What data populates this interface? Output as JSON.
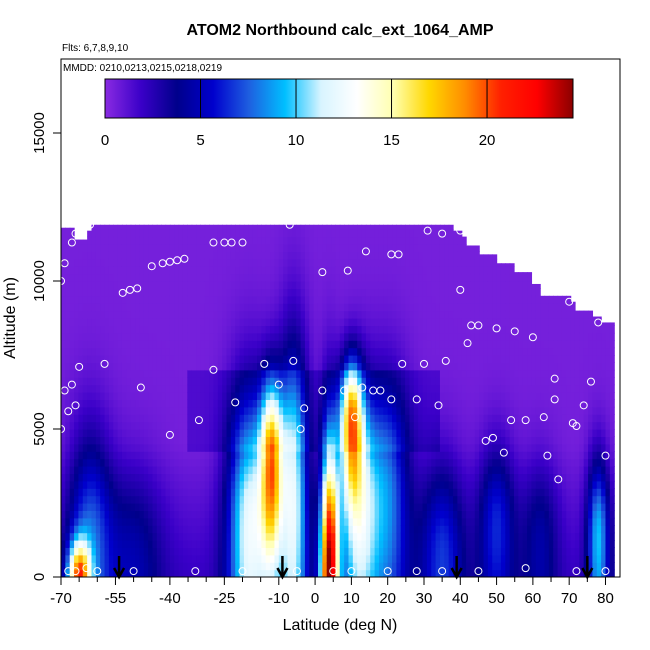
{
  "chart_data": {
    "type": "heatmap",
    "title": "ATOM2 Northbound calc_ext_1064_AMP",
    "subtitle_flights": "Flts: 6,7,8,9,10",
    "subtitle_dates": "MMDD: 0210,0213,0215,0218,0219",
    "xlabel": "Latitude (deg N)",
    "ylabel": "Altitude (m)",
    "xlim": [
      -70,
      84
    ],
    "ylim": [
      0,
      17500
    ],
    "x_ticks": [
      -70,
      -55,
      -40,
      -25,
      -10,
      0,
      10,
      20,
      30,
      40,
      50,
      60,
      70,
      80
    ],
    "x_tick_labels": [
      "-70",
      "-55",
      "-40",
      "-25",
      "-10",
      "0",
      "10",
      "20",
      "30",
      "40",
      "50",
      "60",
      "70",
      "80"
    ],
    "x_minor_ticks": [
      -65,
      -60,
      -50,
      -45,
      -35,
      -30,
      -20,
      -15,
      -5,
      5,
      15,
      25,
      35,
      45,
      55,
      65,
      75
    ],
    "y_ticks": [
      0,
      5000,
      10000,
      15000
    ],
    "y_tick_labels": [
      "0",
      "5000",
      "10000",
      "15000"
    ],
    "colorbar": {
      "range": [
        0,
        24.5
      ],
      "ticks": [
        0,
        5,
        10,
        15,
        20
      ],
      "tick_labels": [
        "0",
        "5",
        "10",
        "15",
        "20"
      ],
      "colors": [
        "#8a2be2",
        "#3a00c8",
        "#00008b",
        "#0000cd",
        "#1e5fe0",
        "#00bfff",
        "#d8f4ff",
        "#ffffff",
        "#ffffb0",
        "#ffd700",
        "#ff8c00",
        "#ff2000",
        "#ff0000",
        "#8b0000"
      ]
    },
    "field": {
      "background_value": 0.5,
      "top_cutoff": [
        [
          -70,
          11800
        ],
        [
          -66,
          11400
        ],
        [
          -63,
          11700
        ],
        [
          -62,
          11900
        ],
        [
          -40,
          11900
        ],
        [
          -30,
          11900
        ],
        [
          -20,
          11900
        ],
        [
          0,
          11900
        ],
        [
          10,
          11900
        ],
        [
          20,
          11900
        ],
        [
          31,
          11900
        ],
        [
          38,
          11700
        ],
        [
          40,
          11500
        ],
        [
          42,
          11200
        ],
        [
          45,
          10900
        ],
        [
          50,
          10600
        ],
        [
          55,
          10300
        ],
        [
          60,
          9900
        ],
        [
          62,
          9500
        ],
        [
          70,
          9300
        ],
        [
          72,
          9000
        ],
        [
          76,
          8800
        ],
        [
          79,
          8600
        ],
        [
          82,
          8500
        ]
      ],
      "plumes": [
        {
          "lat": -65,
          "alt": 0,
          "amp": 15,
          "lat_width": 3,
          "alt_scale": 1200
        },
        {
          "lat": -62,
          "alt": 1500,
          "amp": 6,
          "lat_width": 6,
          "alt_scale": 3500
        },
        {
          "lat": -50,
          "alt": 800,
          "amp": 3,
          "lat_width": 8,
          "alt_scale": 3000
        },
        {
          "lat": -18,
          "alt": 2000,
          "amp": 11,
          "lat_width": 6,
          "alt_scale": 4000
        },
        {
          "lat": -12,
          "alt": 4000,
          "amp": 15,
          "lat_width": 3,
          "alt_scale": 2500
        },
        {
          "lat": -6,
          "alt": 3000,
          "amp": 11,
          "lat_width": 4,
          "alt_scale": 4500
        },
        {
          "lat": 4,
          "alt": 0,
          "amp": 23,
          "lat_width": 2.5,
          "alt_scale": 4500
        },
        {
          "lat": 10,
          "alt": 5500,
          "amp": 14,
          "lat_width": 3,
          "alt_scale": 1800
        },
        {
          "lat": 12,
          "alt": 2500,
          "amp": 10,
          "lat_width": 5,
          "alt_scale": 3500
        },
        {
          "lat": 20,
          "alt": 3000,
          "amp": 7,
          "lat_width": 6,
          "alt_scale": 3500
        },
        {
          "lat": 35,
          "alt": 1000,
          "amp": 5,
          "lat_width": 6,
          "alt_scale": 3000
        },
        {
          "lat": 50,
          "alt": 2000,
          "amp": 5,
          "lat_width": 5,
          "alt_scale": 2500
        },
        {
          "lat": 62,
          "alt": 1500,
          "amp": 3,
          "lat_width": 5,
          "alt_scale": 2500
        },
        {
          "lat": 78,
          "alt": 1500,
          "amp": 8,
          "lat_width": 3,
          "alt_scale": 2500
        }
      ],
      "layer_band": {
        "lat_min": -35,
        "lat_max": 35,
        "alt_min": 4300,
        "alt_max": 7000,
        "amp": 3
      }
    },
    "sample_points": [
      [
        -70,
        10000
      ],
      [
        -69,
        10600
      ],
      [
        -67,
        11300
      ],
      [
        -66,
        11600
      ],
      [
        -62,
        11900
      ],
      [
        -45,
        10500
      ],
      [
        -42,
        10600
      ],
      [
        -40,
        10650
      ],
      [
        -38,
        10700
      ],
      [
        -36,
        10750
      ],
      [
        -28,
        11300
      ],
      [
        -25,
        11300
      ],
      [
        -23,
        11300
      ],
      [
        -20,
        11300
      ],
      [
        -7,
        11900
      ],
      [
        -53,
        9600
      ],
      [
        -51,
        9700
      ],
      [
        -49,
        9750
      ],
      [
        2,
        10300
      ],
      [
        9,
        10350
      ],
      [
        14,
        11000
      ],
      [
        21,
        10900
      ],
      [
        23,
        10900
      ],
      [
        31,
        11700
      ],
      [
        35,
        11600
      ],
      [
        40,
        11700
      ],
      [
        -70,
        5000
      ],
      [
        -69,
        6300
      ],
      [
        -68,
        5600
      ],
      [
        -67,
        6500
      ],
      [
        -66,
        5800
      ],
      [
        -65,
        7100
      ],
      [
        -58,
        7200
      ],
      [
        -48,
        6400
      ],
      [
        -40,
        4800
      ],
      [
        -32,
        5300
      ],
      [
        -28,
        7000
      ],
      [
        -22,
        5900
      ],
      [
        -14,
        7200
      ],
      [
        -10,
        6500
      ],
      [
        -6,
        7300
      ],
      [
        -3,
        5700
      ],
      [
        -4,
        5000
      ],
      [
        2,
        6300
      ],
      [
        8,
        6300
      ],
      [
        11,
        5400
      ],
      [
        13,
        6400
      ],
      [
        16,
        6300
      ],
      [
        18,
        6300
      ],
      [
        21,
        6000
      ],
      [
        24,
        7200
      ],
      [
        28,
        6000
      ],
      [
        30,
        7200
      ],
      [
        34,
        5800
      ],
      [
        36,
        7300
      ],
      [
        40,
        9700
      ],
      [
        42,
        7900
      ],
      [
        43,
        8500
      ],
      [
        45,
        8500
      ],
      [
        47,
        4600
      ],
      [
        49,
        4700
      ],
      [
        50,
        8400
      ],
      [
        52,
        4200
      ],
      [
        54,
        5300
      ],
      [
        55,
        8300
      ],
      [
        58,
        5300
      ],
      [
        60,
        8100
      ],
      [
        63,
        5400
      ],
      [
        64,
        4100
      ],
      [
        66,
        6700
      ],
      [
        66,
        6000
      ],
      [
        67,
        3300
      ],
      [
        70,
        9300
      ],
      [
        71,
        5200
      ],
      [
        72,
        5100
      ],
      [
        74,
        5800
      ],
      [
        75,
        9200
      ],
      [
        76,
        6600
      ],
      [
        78,
        8600
      ],
      [
        80,
        4100
      ],
      [
        -68,
        200
      ],
      [
        -66,
        200
      ],
      [
        -63,
        300
      ],
      [
        -60,
        200
      ],
      [
        -50,
        200
      ],
      [
        -33,
        200
      ],
      [
        -20,
        200
      ],
      [
        -5,
        200
      ],
      [
        5,
        200
      ],
      [
        10,
        200
      ],
      [
        20,
        200
      ],
      [
        28,
        200
      ],
      [
        35,
        200
      ],
      [
        45,
        200
      ],
      [
        58,
        300
      ],
      [
        72,
        200
      ],
      [
        80,
        200
      ]
    ],
    "arrows_lat": [
      -54,
      -9,
      39,
      75
    ]
  }
}
